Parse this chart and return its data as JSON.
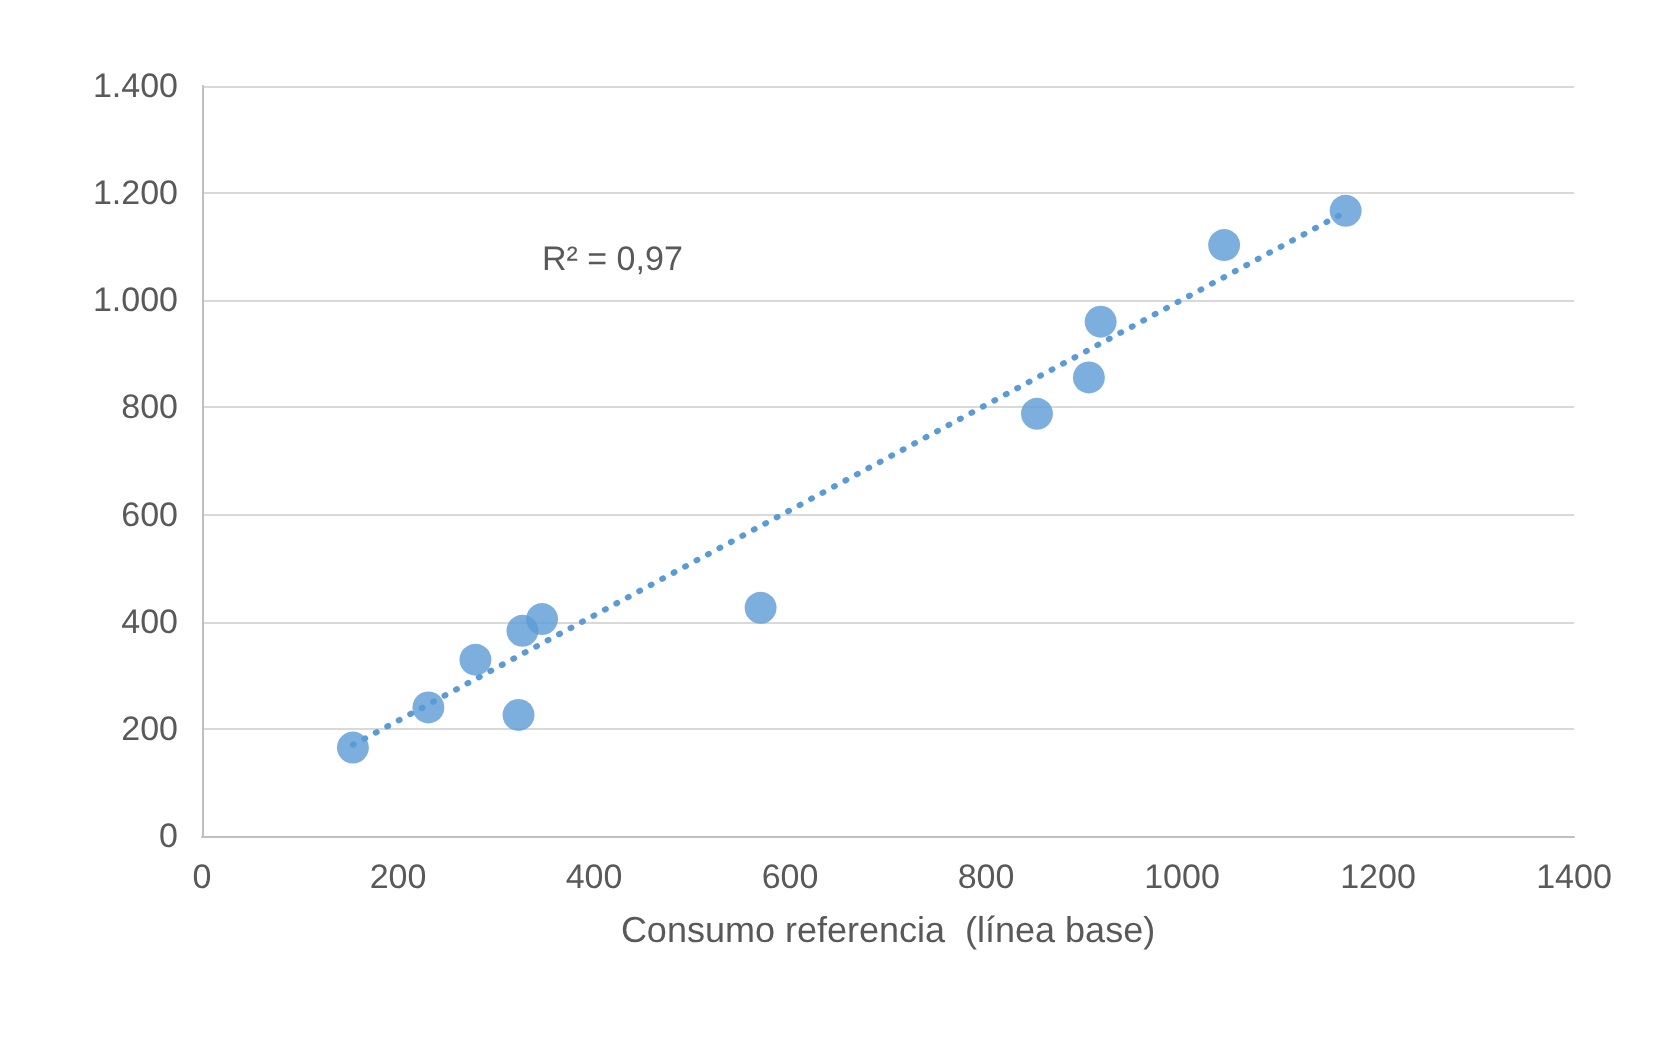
{
  "chart_data": {
    "type": "scatter",
    "xlabel": "Consumo referencia  (línea base)",
    "xlim": [
      0,
      1400
    ],
    "xticks": [
      0,
      200,
      400,
      600,
      800,
      1000,
      1200,
      1400
    ],
    "ylim": [
      0,
      1400
    ],
    "yticks": [
      0,
      200,
      400,
      600,
      800,
      {
        "value": 1000,
        "label": "1.000"
      },
      {
        "value": 1200,
        "label": "1.200"
      },
      {
        "value": 1400,
        "label": "1.400"
      }
    ],
    "grid": "y",
    "marker": "circle",
    "annotations": [
      "R² = 0,97"
    ],
    "series": [
      {
        "color": "#5b9bd5",
        "x": [
          154,
          231,
          279,
          323,
          327,
          347,
          570,
          852,
          905,
          917,
          1043,
          1167
        ],
        "values": [
          165,
          240,
          329,
          226,
          383,
          405,
          426,
          788,
          856,
          960,
          1103,
          1167
        ]
      },
      {
        "type": "line",
        "color": "#5b9bd5",
        "line_style": "dotted",
        "marker": "none",
        "x": [
          154,
          1167
        ],
        "values": [
          170,
          1165
        ]
      }
    ]
  }
}
